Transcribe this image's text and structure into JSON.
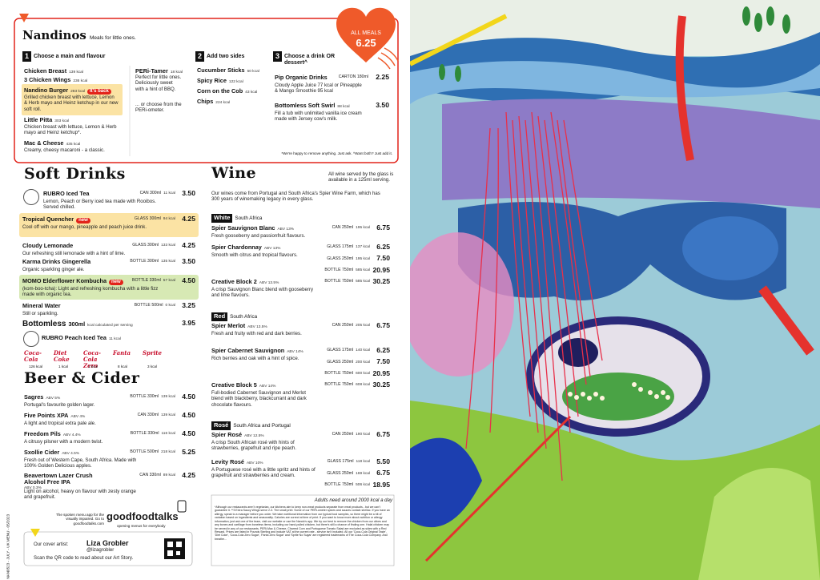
{
  "nandinos": {
    "title": "Nandinos",
    "subtitle": "Meals for little ones.",
    "offer": {
      "label": "ALL MEALS",
      "price": "6.25"
    },
    "steps": [
      {
        "number": "1",
        "label": "Choose a main and flavour",
        "items": [
          {
            "name": "Chicken Breast",
            "kcal": "139 kcal"
          },
          {
            "name": "3 Chicken Wings",
            "kcal": "236 kcal"
          },
          {
            "name": "Nandino Burger",
            "kcal": "283 kcal",
            "badge": "It's back",
            "desc": "Grilled chicken breast with lettuce, Lemon & Herb mayo and Heinz ketchup in our new soft roll."
          },
          {
            "name": "Little Pitta",
            "kcal": "303 kcal",
            "desc": "Chicken breast with lettuce, Lemon & Herb mayo and Heinz ketchup*."
          },
          {
            "name": "Mac & Cheese",
            "kcal": "435 kcal",
            "desc": "Creamy, cheesy macaroni - a classic."
          }
        ]
      },
      {
        "number": "2",
        "label": "Add two sides",
        "items": [
          {
            "name": "Cucumber Sticks",
            "kcal": "50 kcal"
          },
          {
            "name": "Spicy Rice",
            "kcal": "122 kcal"
          },
          {
            "name": "Corn on the Cob",
            "kcal": "43 kcal"
          },
          {
            "name": "Chips",
            "kcal": "224 kcal"
          }
        ]
      },
      {
        "number": "3",
        "label": "Choose a drink OR dessert^",
        "items": [
          {
            "name": "Pip Organic Drinks",
            "size": "CARTON 180ml",
            "price": "2.25",
            "desc": "Cloudy Apple Juice 77 kcal or Pineapple & Mango Smoothie 95 kcal"
          },
          {
            "name": "Bottomless Soft Swirl",
            "kcal": "88 kcal",
            "price": "3.50",
            "desc": "Fill a tub with unlimited vanilla ice cream made with Jersey cow's milk."
          }
        ]
      }
    ],
    "peri_tamer": {
      "name": "PERi-Tamer",
      "kcal": "18 kcal",
      "desc": "Perfect for little ones. Deliciously sweet with a hint of BBQ.",
      "more": "... or choose from the PERi-ometer."
    },
    "footnote": "*We're happy to remove anything. Just ask.  ^Want both? Just add it."
  },
  "soft_drinks": {
    "title": "Soft Drinks",
    "items": [
      {
        "name": "RUBRO Iced Tea",
        "desc": "Lemon, Peach or Berry iced tea made with Rooibos. Served chilled.",
        "sizes": [
          {
            "size": "CAN 300ml",
            "kcal": "11 kcal",
            "price": "3.50"
          }
        ]
      },
      {
        "name": "Tropical Quencher",
        "badge": "new",
        "desc": "Cool off with our mango, pineapple and peach juice drink.",
        "sizes": [
          {
            "size": "GLASS 300ml",
            "kcal": "94 kcal",
            "price": "4.25"
          }
        ]
      },
      {
        "name": "Cloudy Lemonade",
        "desc": "Our refreshing still lemonade with a hint of lime.",
        "sizes": [
          {
            "size": "GLASS 300ml",
            "kcal": "133 kcal",
            "price": "4.25"
          }
        ]
      },
      {
        "name": "Karma Drinks Gingerella",
        "desc": "Organic sparkling ginger ale.",
        "sizes": [
          {
            "size": "BOTTLE 300ml",
            "kcal": "135 kcal",
            "price": "3.50"
          }
        ]
      },
      {
        "name": "MOMO Elderflower Kombucha",
        "badge": "new",
        "desc": "(kom-boo-tcha): Light and refreshing kombucha with a little fizz made with organic tea.",
        "sizes": [
          {
            "size": "BOTTLE 330ml",
            "kcal": "57 kcal",
            "price": "4.50"
          }
        ]
      },
      {
        "name": "Mineral Water",
        "desc": "Still or sparkling.",
        "sizes": [
          {
            "size": "BOTTLE 500ml",
            "kcal": "0 kcal",
            "price": "3.25"
          }
        ]
      }
    ],
    "bottomless": {
      "name": "Bottomless",
      "size": "300ml",
      "note": "kcal calculated per serving",
      "price": "3.95"
    },
    "peach": {
      "name": "RUBRO Peach Iced Tea",
      "kcal": "11 kcal"
    },
    "brands": [
      {
        "name": "Coca-Cola",
        "kcal": "126 kcal"
      },
      {
        "name": "Diet Coke",
        "kcal": "1 kcal"
      },
      {
        "name": "Coca-Cola Zero",
        "kcal": "1 kcal"
      },
      {
        "name": "Fanta",
        "kcal": "8 kcal"
      },
      {
        "name": "Sprite",
        "kcal": "3 kcal"
      }
    ]
  },
  "beer": {
    "title": "Beer & Cider",
    "items": [
      {
        "name": "Sagres",
        "abv": "ABV 5%",
        "desc": "Portugal's favourite golden lager.",
        "sizes": [
          {
            "size": "BOTTLE 330ml",
            "kcal": "139 kcal",
            "price": "4.50"
          }
        ]
      },
      {
        "name": "Five Points XPA",
        "abv": "ABV 4%",
        "desc": "A light and tropical extra pale ale.",
        "sizes": [
          {
            "size": "CAN 330ml",
            "kcal": "139 kcal",
            "price": "4.50"
          }
        ]
      },
      {
        "name": "Freedom Pils",
        "abv": "ABV 4.4%",
        "desc": "A citrusy pilsner with a modern twist.",
        "sizes": [
          {
            "size": "BOTTLE 330ml",
            "kcal": "116 kcal",
            "price": "4.50"
          }
        ]
      },
      {
        "name": "Sxollie Cider",
        "abv": "ABV 4.5%",
        "desc": "Fresh out of Western Cape, South Africa. Made with 100% Golden Delicious apples.",
        "sizes": [
          {
            "size": "BOTTLE 500ml",
            "kcal": "218 kcal",
            "price": "5.25"
          }
        ]
      },
      {
        "name": "Beavertown Lazer Crush Alcohol Free IPA",
        "abv": "ABV 0.3%",
        "desc": "Light on alcohol, heavy on flavour with zesty orange and grapefruit.",
        "sizes": [
          {
            "size": "CAN 330ml",
            "kcal": "89 kcal",
            "price": "4.25"
          }
        ]
      }
    ]
  },
  "wine": {
    "title": "Wine",
    "note": "All wine served by the glass is available in a 125ml serving.",
    "intro": "Our wines come from Portugal and South Africa's Spier Wine Farm, which has 300 years of winemaking legacy in every glass.",
    "groups": [
      {
        "label": "White",
        "origin": "South Africa",
        "items": [
          {
            "name": "Spier Sauvignon Blanc",
            "abv": "ABV 13%",
            "desc": "Fresh gooseberry and passionfruit flavours.",
            "sizes": [
              {
                "size": "CAN 250ml",
                "kcal": "195 kcal",
                "price": "6.75"
              }
            ]
          },
          {
            "name": "Spier Chardonnay",
            "abv": "ABV 13%",
            "desc": "Smooth with citrus and tropical flavours.",
            "sizes": [
              {
                "size": "GLASS 175ml",
                "kcal": "137 kcal",
                "price": "6.25"
              },
              {
                "size": "GLASS 250ml",
                "kcal": "195 kcal",
                "price": "7.50"
              },
              {
                "size": "BOTTLE 750ml",
                "kcal": "585 kcal",
                "price": "20.95"
              }
            ]
          },
          {
            "name": "Creative Block 2",
            "abv": "ABV 13.5%",
            "desc": "A crisp Sauvignon Blanc blend with gooseberry and lime flavours.",
            "sizes": [
              {
                "size": "BOTTLE 750ml",
                "kcal": "585 kcal",
                "price": "30.25"
              }
            ]
          }
        ]
      },
      {
        "label": "Red",
        "origin": "South Africa",
        "items": [
          {
            "name": "Spier Merlot",
            "abv": "ABV 13.5%",
            "desc": "Fresh and fruity with red and dark berries.",
            "sizes": [
              {
                "size": "CAN 250ml",
                "kcal": "205 kcal",
                "price": "6.75"
              }
            ]
          },
          {
            "name": "Spier Cabernet Sauvignon",
            "abv": "ABV 14%",
            "desc": "Rich berries and oak with a hint of spice.",
            "sizes": [
              {
                "size": "GLASS 175ml",
                "kcal": "140 kcal",
                "price": "6.25"
              },
              {
                "size": "GLASS 250ml",
                "kcal": "200 kcal",
                "price": "7.50"
              },
              {
                "size": "BOTTLE 750ml",
                "kcal": "600 kcal",
                "price": "20.95"
              }
            ]
          },
          {
            "name": "Creative Block 5",
            "abv": "ABV 14%",
            "desc": "Full-bodied Cabernet Sauvignon and Merlot blend with blackberry, blackcurrant and dark chocolate flavours.",
            "sizes": [
              {
                "size": "BOTTLE 750ml",
                "kcal": "608 kcal",
                "price": "30.25"
              }
            ]
          }
        ]
      },
      {
        "label": "Rosé",
        "origin": "South Africa and Portugal",
        "items": [
          {
            "name": "Spier Rosé",
            "abv": "ABV 12.5%",
            "desc": "A crisp South African rosé with hints of strawberries, grapefruit and ripe peach.",
            "sizes": [
              {
                "size": "CAN 250ml",
                "kcal": "190 kcal",
                "price": "6.75"
              }
            ]
          },
          {
            "name": "Levity Rosé",
            "abv": "ABV 10%",
            "desc": "A Portuguese rosé with a little spritz and hints of grapefruit and strawberries and cream.",
            "sizes": [
              {
                "size": "GLASS 175ml",
                "kcal": "118 kcal",
                "price": "5.50"
              },
              {
                "size": "GLASS 250ml",
                "kcal": "169 kcal",
                "price": "6.75"
              },
              {
                "size": "BOTTLE 750ml",
                "kcal": "506 kcal",
                "price": "18.95"
              }
            ]
          }
        ]
      }
    ]
  },
  "footer": {
    "kcal_heading": "Adults need around 2000 kcal a day",
    "small_print": "*Although our restaurants aren't vegetarian, our kitchens aim to keep non-meat products separate from meat products - but we can't guarantee it. **3 Extra Saucy Wings serve 2-3. The small print: Some of our PERi-ometer spices and sauces contain shellac. If you have an allergy, speak to a manager before you order. We take nutritional information from our typical food samples, so there might be a bit of variation based on ingredients and seasonality. Calories are correct at time of print. If you want to know more about nutrition or allergy information, just ask one of the team, visit our website or use the Nando's app. We try our best to remove the chicken from our olives and any bones and cartilage from boneless items, including our hand-pulled chicken, but there's still a chance of finding one. Halal chicken may be served in any of our restaurants. PERi-Mac & Cheese, Charred Corn and Portuguese Tomato Salad are excluded as sides with a Red Reward. Prices are listed in Pounds Sterling and include VAT at the current rate - service isn't included. All our 'Coca-Cola Original Taste', 'Diet Coke', 'Coca-Cola Zero Sugar', 'Fanta Zero Sugar' and 'Sprite No Sugar' are registered trademarks of The Coca-Cola Company. And breathe...",
    "goodfoodtalks": {
      "tagline": "The spoken menu app for the visually impaired. Go to goodfoodtalks.com",
      "logo": "goodfoodtalks",
      "slogan": "opening menus for everybody"
    },
    "artist": {
      "label": "Our cover artist:",
      "name": "Liza Grobler",
      "handle": "@lizagrobler",
      "cta": "Scan the QR code to read about our Art Story."
    },
    "code": "NAN0523 - JULY - UK MENU - 05/2023"
  }
}
